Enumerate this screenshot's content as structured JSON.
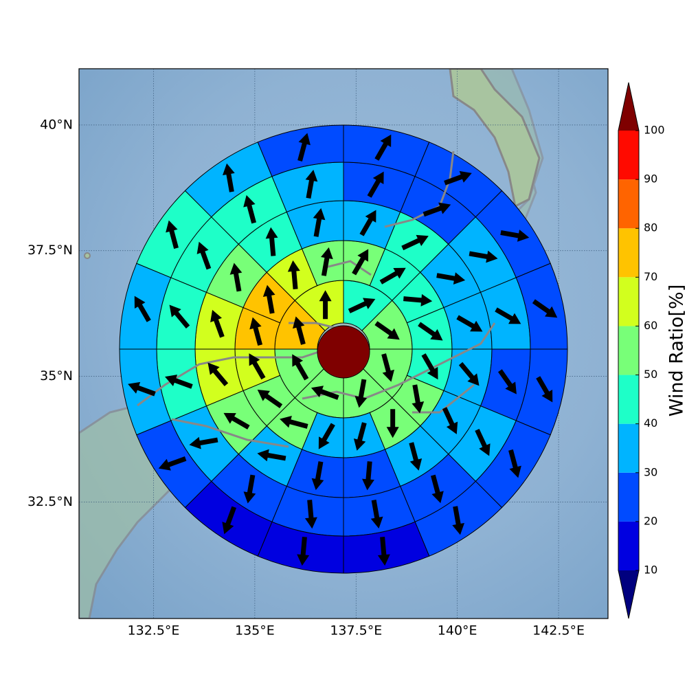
{
  "chart_data": {
    "type": "polar-grid",
    "xlim": [
      130.66,
      143.72
    ],
    "ylim": [
      30.18,
      41.12
    ],
    "xticks": [
      {
        "value": 132.5,
        "label": "132.5°E"
      },
      {
        "value": 135,
        "label": "135°E"
      },
      {
        "value": 137.5,
        "label": "137.5°E"
      },
      {
        "value": 140,
        "label": "140°E"
      },
      {
        "value": 142.5,
        "label": "142.5°E"
      }
    ],
    "yticks": [
      {
        "value": 32.5,
        "label": "32.5°N"
      },
      {
        "value": 35,
        "label": "35°N"
      },
      {
        "value": 37.5,
        "label": "37.5°N"
      },
      {
        "value": 40,
        "label": "40°N"
      }
    ],
    "grid": true,
    "colorbar": {
      "label": "Wind Ratio[%]",
      "levels": [
        10,
        20,
        30,
        40,
        50,
        60,
        70,
        80,
        90,
        100
      ],
      "colors": [
        "#0000e0",
        "#004bff",
        "#00b4ff",
        "#1effc8",
        "#78ff78",
        "#d2ff1e",
        "#ffc300",
        "#ff6400",
        "#ff0a00"
      ],
      "under": "#00007f",
      "over": "#7f0000"
    },
    "rings": [
      {
        "values": [
          45,
          55,
          55,
          55,
          55,
          55,
          75,
          65
        ],
        "directions": [
          65,
          125,
          165,
          190,
          290,
          330,
          345,
          0
        ]
      },
      {
        "values": [
          55,
          45,
          45,
          45,
          45,
          55,
          55,
          35,
          35,
          55,
          55,
          65,
          75,
          75,
          65,
          55
        ],
        "directions": [
          30,
          60,
          95,
          125,
          150,
          170,
          180,
          195,
          210,
          285,
          305,
          330,
          345,
          350,
          355,
          10
        ]
      },
      {
        "values": [
          35,
          45,
          35,
          35,
          35,
          35,
          35,
          25,
          25,
          35,
          55,
          65,
          65,
          55,
          45,
          35
        ],
        "directions": [
          30,
          65,
          100,
          120,
          140,
          155,
          165,
          185,
          190,
          280,
          300,
          320,
          340,
          350,
          355,
          10
        ]
      },
      {
        "values": [
          25,
          25,
          35,
          35,
          25,
          35,
          25,
          25,
          25,
          25,
          35,
          45,
          45,
          45,
          45,
          35
        ],
        "directions": [
          30,
          70,
          100,
          120,
          145,
          155,
          165,
          170,
          175,
          190,
          260,
          290,
          320,
          340,
          345,
          10
        ]
      },
      {
        "values": [
          25,
          25,
          25,
          25,
          25,
          25,
          25,
          15,
          15,
          15,
          25,
          35,
          35,
          45,
          35,
          25
        ],
        "directions": [
          30,
          70,
          100,
          125,
          150,
          165,
          170,
          175,
          185,
          200,
          250,
          290,
          330,
          345,
          350,
          15
        ]
      }
    ]
  }
}
